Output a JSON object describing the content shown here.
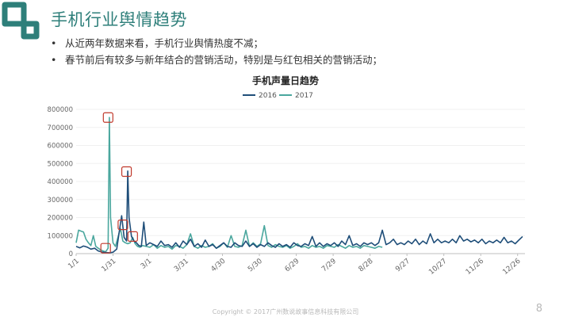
{
  "slide": {
    "title": "手机行业舆情趋势",
    "bullets": [
      "从近两年数据来看，手机行业舆情热度不减；",
      "春节前后有较多与新年结合的营销活动，特别是与红包相关的营销活动；"
    ],
    "footer": "Copyright © 2017广州数说故事信息科技有限公司",
    "page_number": "8"
  },
  "colors": {
    "accent": "#2e7f7a",
    "series_2016": "#1f4e79",
    "series_2017": "#4aa79e",
    "highlight_box": "#c0392b"
  },
  "chart_data": {
    "type": "line",
    "title": "手机声量日趋势",
    "xlabel": "",
    "ylabel": "",
    "ylim": [
      0,
      800000
    ],
    "yticks": [
      "0",
      "100000",
      "200000",
      "300000",
      "400000",
      "500000",
      "600000",
      "700000",
      "800000"
    ],
    "x_day_ticks": [
      0,
      30,
      59,
      89,
      119,
      149,
      179,
      209,
      239,
      269,
      299,
      329,
      359
    ],
    "x_tick_labels": [
      "1/1",
      "1/31",
      "3/1",
      "3/31",
      "4/30",
      "5/30",
      "6/29",
      "7/29",
      "8/28",
      "9/27",
      "10/27",
      "11/26",
      "12/26"
    ],
    "legend": {
      "position": "top-center"
    },
    "series": [
      {
        "name": "2016",
        "color": "#1f4e79",
        "points": [
          [
            0,
            40000
          ],
          [
            3,
            32000
          ],
          [
            6,
            42000
          ],
          [
            9,
            36000
          ],
          [
            12,
            25000
          ],
          [
            15,
            30000
          ],
          [
            18,
            15000
          ],
          [
            21,
            9000
          ],
          [
            24,
            6000
          ],
          [
            27,
            5000
          ],
          [
            30,
            8000
          ],
          [
            33,
            25000
          ],
          [
            35,
            120000
          ],
          [
            37,
            210000
          ],
          [
            39,
            90000
          ],
          [
            41,
            70000
          ],
          [
            42,
            458000
          ],
          [
            43,
            200000
          ],
          [
            45,
            95000
          ],
          [
            47,
            70000
          ],
          [
            49,
            60000
          ],
          [
            51,
            45000
          ],
          [
            53,
            40000
          ],
          [
            55,
            175000
          ],
          [
            57,
            45000
          ],
          [
            60,
            60000
          ],
          [
            63,
            50000
          ],
          [
            66,
            40000
          ],
          [
            69,
            70000
          ],
          [
            72,
            45000
          ],
          [
            75,
            50000
          ],
          [
            78,
            35000
          ],
          [
            81,
            60000
          ],
          [
            84,
            35000
          ],
          [
            87,
            70000
          ],
          [
            90,
            50000
          ],
          [
            93,
            80000
          ],
          [
            96,
            40000
          ],
          [
            99,
            55000
          ],
          [
            102,
            35000
          ],
          [
            105,
            75000
          ],
          [
            108,
            40000
          ],
          [
            111,
            50000
          ],
          [
            114,
            30000
          ],
          [
            117,
            45000
          ],
          [
            120,
            60000
          ],
          [
            123,
            40000
          ],
          [
            126,
            35000
          ],
          [
            129,
            60000
          ],
          [
            132,
            45000
          ],
          [
            135,
            40000
          ],
          [
            138,
            70000
          ],
          [
            141,
            40000
          ],
          [
            144,
            55000
          ],
          [
            147,
            35000
          ],
          [
            150,
            50000
          ],
          [
            153,
            40000
          ],
          [
            156,
            60000
          ],
          [
            159,
            45000
          ],
          [
            162,
            35000
          ],
          [
            165,
            55000
          ],
          [
            168,
            40000
          ],
          [
            171,
            50000
          ],
          [
            174,
            35000
          ],
          [
            177,
            60000
          ],
          [
            180,
            45000
          ],
          [
            183,
            40000
          ],
          [
            186,
            55000
          ],
          [
            189,
            45000
          ],
          [
            192,
            95000
          ],
          [
            195,
            40000
          ],
          [
            198,
            60000
          ],
          [
            201,
            40000
          ],
          [
            204,
            55000
          ],
          [
            207,
            45000
          ],
          [
            210,
            60000
          ],
          [
            213,
            40000
          ],
          [
            216,
            70000
          ],
          [
            219,
            50000
          ],
          [
            222,
            100000
          ],
          [
            225,
            45000
          ],
          [
            228,
            55000
          ],
          [
            231,
            40000
          ],
          [
            234,
            60000
          ],
          [
            237,
            50000
          ],
          [
            240,
            60000
          ],
          [
            243,
            45000
          ],
          [
            246,
            60000
          ],
          [
            249,
            130000
          ],
          [
            252,
            50000
          ],
          [
            255,
            60000
          ],
          [
            258,
            80000
          ],
          [
            261,
            50000
          ],
          [
            264,
            60000
          ],
          [
            267,
            50000
          ],
          [
            270,
            70000
          ],
          [
            273,
            55000
          ],
          [
            276,
            80000
          ],
          [
            279,
            50000
          ],
          [
            282,
            70000
          ],
          [
            285,
            55000
          ],
          [
            288,
            110000
          ],
          [
            291,
            60000
          ],
          [
            294,
            80000
          ],
          [
            297,
            60000
          ],
          [
            300,
            70000
          ],
          [
            303,
            60000
          ],
          [
            306,
            80000
          ],
          [
            309,
            60000
          ],
          [
            312,
            100000
          ],
          [
            315,
            70000
          ],
          [
            318,
            80000
          ],
          [
            321,
            65000
          ],
          [
            324,
            75000
          ],
          [
            327,
            60000
          ],
          [
            330,
            80000
          ],
          [
            333,
            55000
          ],
          [
            336,
            70000
          ],
          [
            339,
            60000
          ],
          [
            342,
            75000
          ],
          [
            345,
            60000
          ],
          [
            348,
            90000
          ],
          [
            351,
            60000
          ],
          [
            354,
            70000
          ],
          [
            357,
            55000
          ],
          [
            360,
            75000
          ],
          [
            363,
            95000
          ]
        ]
      },
      {
        "name": "2017",
        "color": "#4aa79e",
        "points": [
          [
            0,
            60000
          ],
          [
            2,
            130000
          ],
          [
            4,
            125000
          ],
          [
            6,
            120000
          ],
          [
            8,
            80000
          ],
          [
            10,
            60000
          ],
          [
            12,
            45000
          ],
          [
            14,
            100000
          ],
          [
            16,
            40000
          ],
          [
            18,
            30000
          ],
          [
            20,
            20000
          ],
          [
            22,
            15000
          ],
          [
            24,
            10000
          ],
          [
            26,
            30000
          ],
          [
            27,
            755000
          ],
          [
            28,
            200000
          ],
          [
            30,
            60000
          ],
          [
            32,
            40000
          ],
          [
            34,
            90000
          ],
          [
            36,
            140000
          ],
          [
            38,
            70000
          ],
          [
            40,
            60000
          ],
          [
            42,
            55000
          ],
          [
            44,
            60000
          ],
          [
            46,
            90000
          ],
          [
            48,
            55000
          ],
          [
            50,
            40000
          ],
          [
            52,
            35000
          ],
          [
            54,
            45000
          ],
          [
            57,
            40000
          ],
          [
            60,
            35000
          ],
          [
            63,
            50000
          ],
          [
            66,
            30000
          ],
          [
            69,
            45000
          ],
          [
            72,
            35000
          ],
          [
            75,
            40000
          ],
          [
            78,
            25000
          ],
          [
            81,
            45000
          ],
          [
            84,
            40000
          ],
          [
            87,
            30000
          ],
          [
            90,
            50000
          ],
          [
            93,
            110000
          ],
          [
            96,
            40000
          ],
          [
            99,
            30000
          ],
          [
            102,
            45000
          ],
          [
            105,
            35000
          ],
          [
            108,
            40000
          ],
          [
            111,
            55000
          ],
          [
            114,
            30000
          ],
          [
            117,
            40000
          ],
          [
            120,
            60000
          ],
          [
            123,
            35000
          ],
          [
            126,
            100000
          ],
          [
            129,
            40000
          ],
          [
            132,
            35000
          ],
          [
            135,
            45000
          ],
          [
            138,
            130000
          ],
          [
            141,
            40000
          ],
          [
            144,
            60000
          ],
          [
            147,
            40000
          ],
          [
            150,
            55000
          ],
          [
            153,
            155000
          ],
          [
            156,
            45000
          ],
          [
            159,
            35000
          ],
          [
            162,
            50000
          ],
          [
            165,
            40000
          ],
          [
            168,
            35000
          ],
          [
            171,
            45000
          ],
          [
            174,
            30000
          ],
          [
            177,
            40000
          ],
          [
            180,
            55000
          ],
          [
            183,
            35000
          ],
          [
            186,
            40000
          ],
          [
            189,
            30000
          ],
          [
            192,
            45000
          ],
          [
            195,
            35000
          ],
          [
            198,
            40000
          ],
          [
            201,
            30000
          ],
          [
            204,
            45000
          ],
          [
            207,
            40000
          ],
          [
            210,
            35000
          ],
          [
            213,
            50000
          ],
          [
            216,
            40000
          ],
          [
            219,
            30000
          ],
          [
            222,
            45000
          ],
          [
            225,
            35000
          ],
          [
            228,
            40000
          ],
          [
            231,
            30000
          ],
          [
            234,
            45000
          ],
          [
            237,
            40000
          ],
          [
            240,
            35000
          ],
          [
            243,
            30000
          ],
          [
            246,
            40000
          ],
          [
            249,
            35000
          ]
        ]
      }
    ],
    "highlights": [
      {
        "day": 26,
        "value": 755000
      },
      {
        "day": 41,
        "value": 455000
      },
      {
        "day": 38,
        "value": 160000
      },
      {
        "day": 46,
        "value": 95000
      },
      {
        "day": 24,
        "value": 30000
      }
    ]
  }
}
